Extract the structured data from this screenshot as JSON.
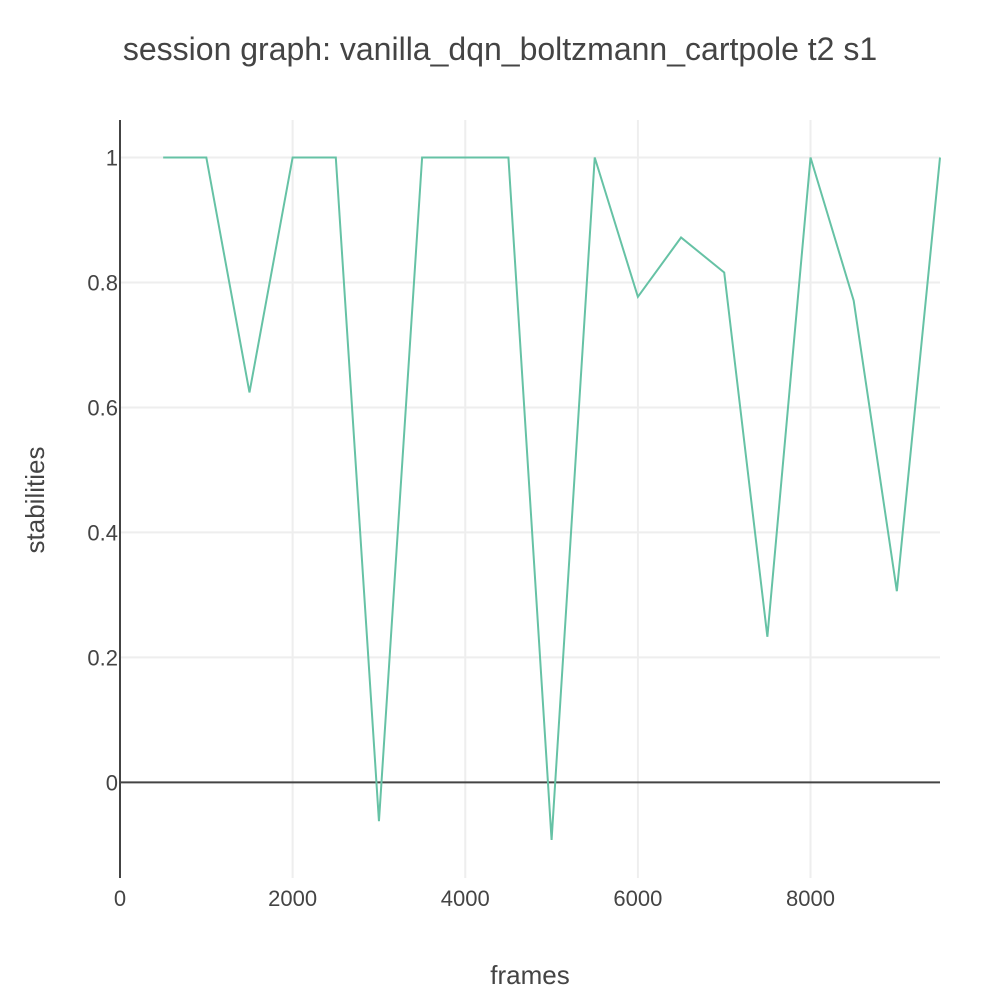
{
  "chart_data": {
    "type": "line",
    "title": "session graph: vanilla_dqn_boltzmann_cartpole t2 s1",
    "xlabel": "frames",
    "ylabel": "stabilities",
    "xlim": [
      0,
      9500
    ],
    "ylim": [
      -0.153,
      1.06
    ],
    "x_ticks": [
      0,
      2000,
      4000,
      6000,
      8000
    ],
    "y_ticks": [
      0,
      0.2,
      0.4,
      0.6,
      0.8,
      1
    ],
    "x_tick_labels": [
      "0",
      "2000",
      "4000",
      "6000",
      "8000"
    ],
    "y_tick_labels": [
      "0",
      "0.2",
      "0.4",
      "0.6",
      "0.8",
      "1"
    ],
    "grid": true,
    "color": "#66c2a5",
    "series": [
      {
        "x": [
          500,
          1000,
          1500,
          2000,
          2500,
          3000,
          3500,
          4000,
          4500,
          5000,
          5500,
          6000,
          6500,
          7000,
          7500,
          8000,
          8500,
          9000,
          9500
        ],
        "values": [
          1,
          1,
          0.624,
          1,
          1,
          -0.062,
          1,
          1,
          1,
          -0.092,
          1,
          0.777,
          0.872,
          0.816,
          0.233,
          1,
          0.771,
          0.306,
          1
        ]
      }
    ]
  }
}
